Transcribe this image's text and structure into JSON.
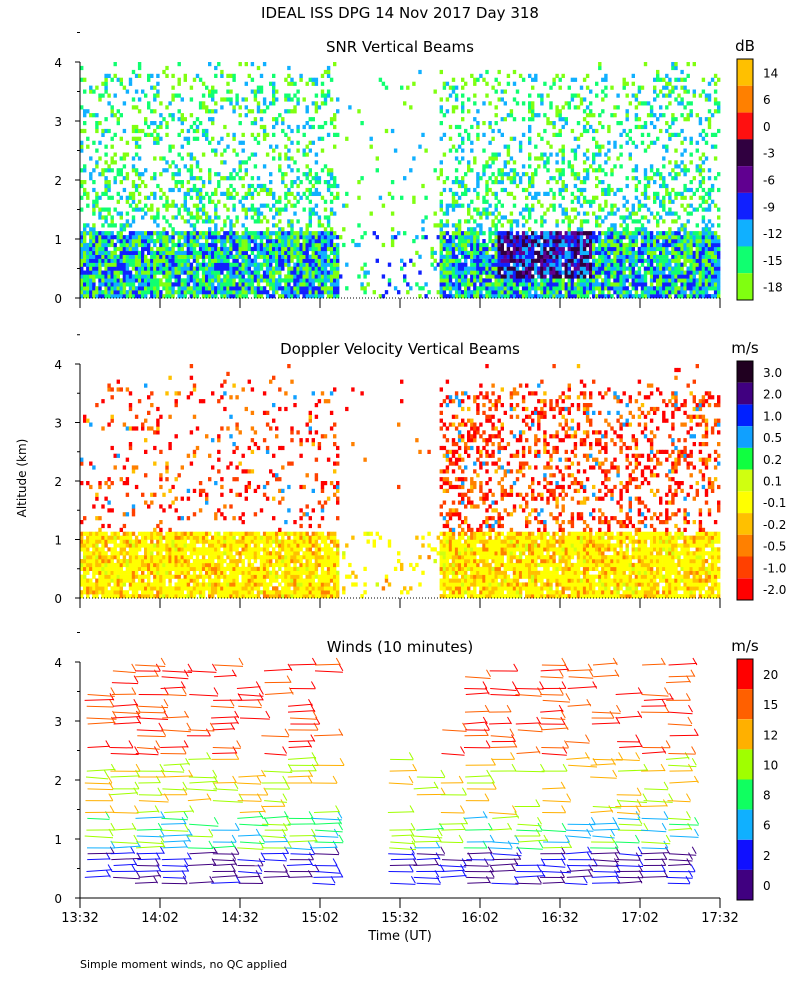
{
  "page": {
    "title": "IDEAL ISS DPG  14 Nov 2017 Day 318",
    "y_axis_label": "Altitude (km)",
    "x_axis_label": "Time (UT)",
    "footnote": "Simple moment winds, no QC applied"
  },
  "chart_data": [
    {
      "id": "snr",
      "type": "heatmap",
      "title": "SNR Vertical Beams",
      "units": "dB",
      "ylim": [
        0,
        4
      ],
      "y_ticks": [
        "0",
        "1",
        "2",
        "3",
        "4"
      ],
      "colorbar": {
        "labels": [
          "14",
          "6",
          "0",
          "-3",
          "-6",
          "-9",
          "-12",
          "-15",
          "-18"
        ],
        "colors": [
          "#ffc000",
          "#ff8000",
          "#ff1010",
          "#300040",
          "#600090",
          "#1020ff",
          "#10b0ff",
          "#10ff70",
          "#80ff10"
        ]
      }
    },
    {
      "id": "doppler",
      "type": "heatmap",
      "title": "Doppler Velocity Vertical Beams",
      "units": "m/s",
      "ylim": [
        0,
        4
      ],
      "y_ticks": [
        "0",
        "1",
        "2",
        "3",
        "4"
      ],
      "colorbar": {
        "labels": [
          "3.0",
          "2.0",
          "1.0",
          "0.5",
          "0.2",
          "0.1",
          "-0.1",
          "-0.2",
          "-0.5",
          "-1.0",
          "-2.0"
        ],
        "colors": [
          "#200020",
          "#400080",
          "#0020ff",
          "#10a0ff",
          "#10ff40",
          "#d0ff10",
          "#ffff00",
          "#ffc000",
          "#ff8000",
          "#ff4000",
          "#ff0000"
        ]
      }
    },
    {
      "id": "winds",
      "type": "scatter",
      "title": "Winds (10 minutes)",
      "units": "m/s",
      "ylim": [
        0,
        4
      ],
      "y_ticks": [
        "0",
        "1",
        "2",
        "3",
        "4"
      ],
      "x_ticks": [
        "13:32",
        "14:02",
        "14:32",
        "15:02",
        "15:32",
        "16:02",
        "16:32",
        "17:02",
        "17:32"
      ],
      "colorbar": {
        "labels": [
          "20",
          "15",
          "12",
          "10",
          "8",
          "6",
          "2",
          "0"
        ],
        "colors": [
          "#ff0000",
          "#ff6000",
          "#ffb000",
          "#a0ff00",
          "#10ff60",
          "#10b0ff",
          "#1010ff",
          "#400080"
        ]
      }
    }
  ]
}
